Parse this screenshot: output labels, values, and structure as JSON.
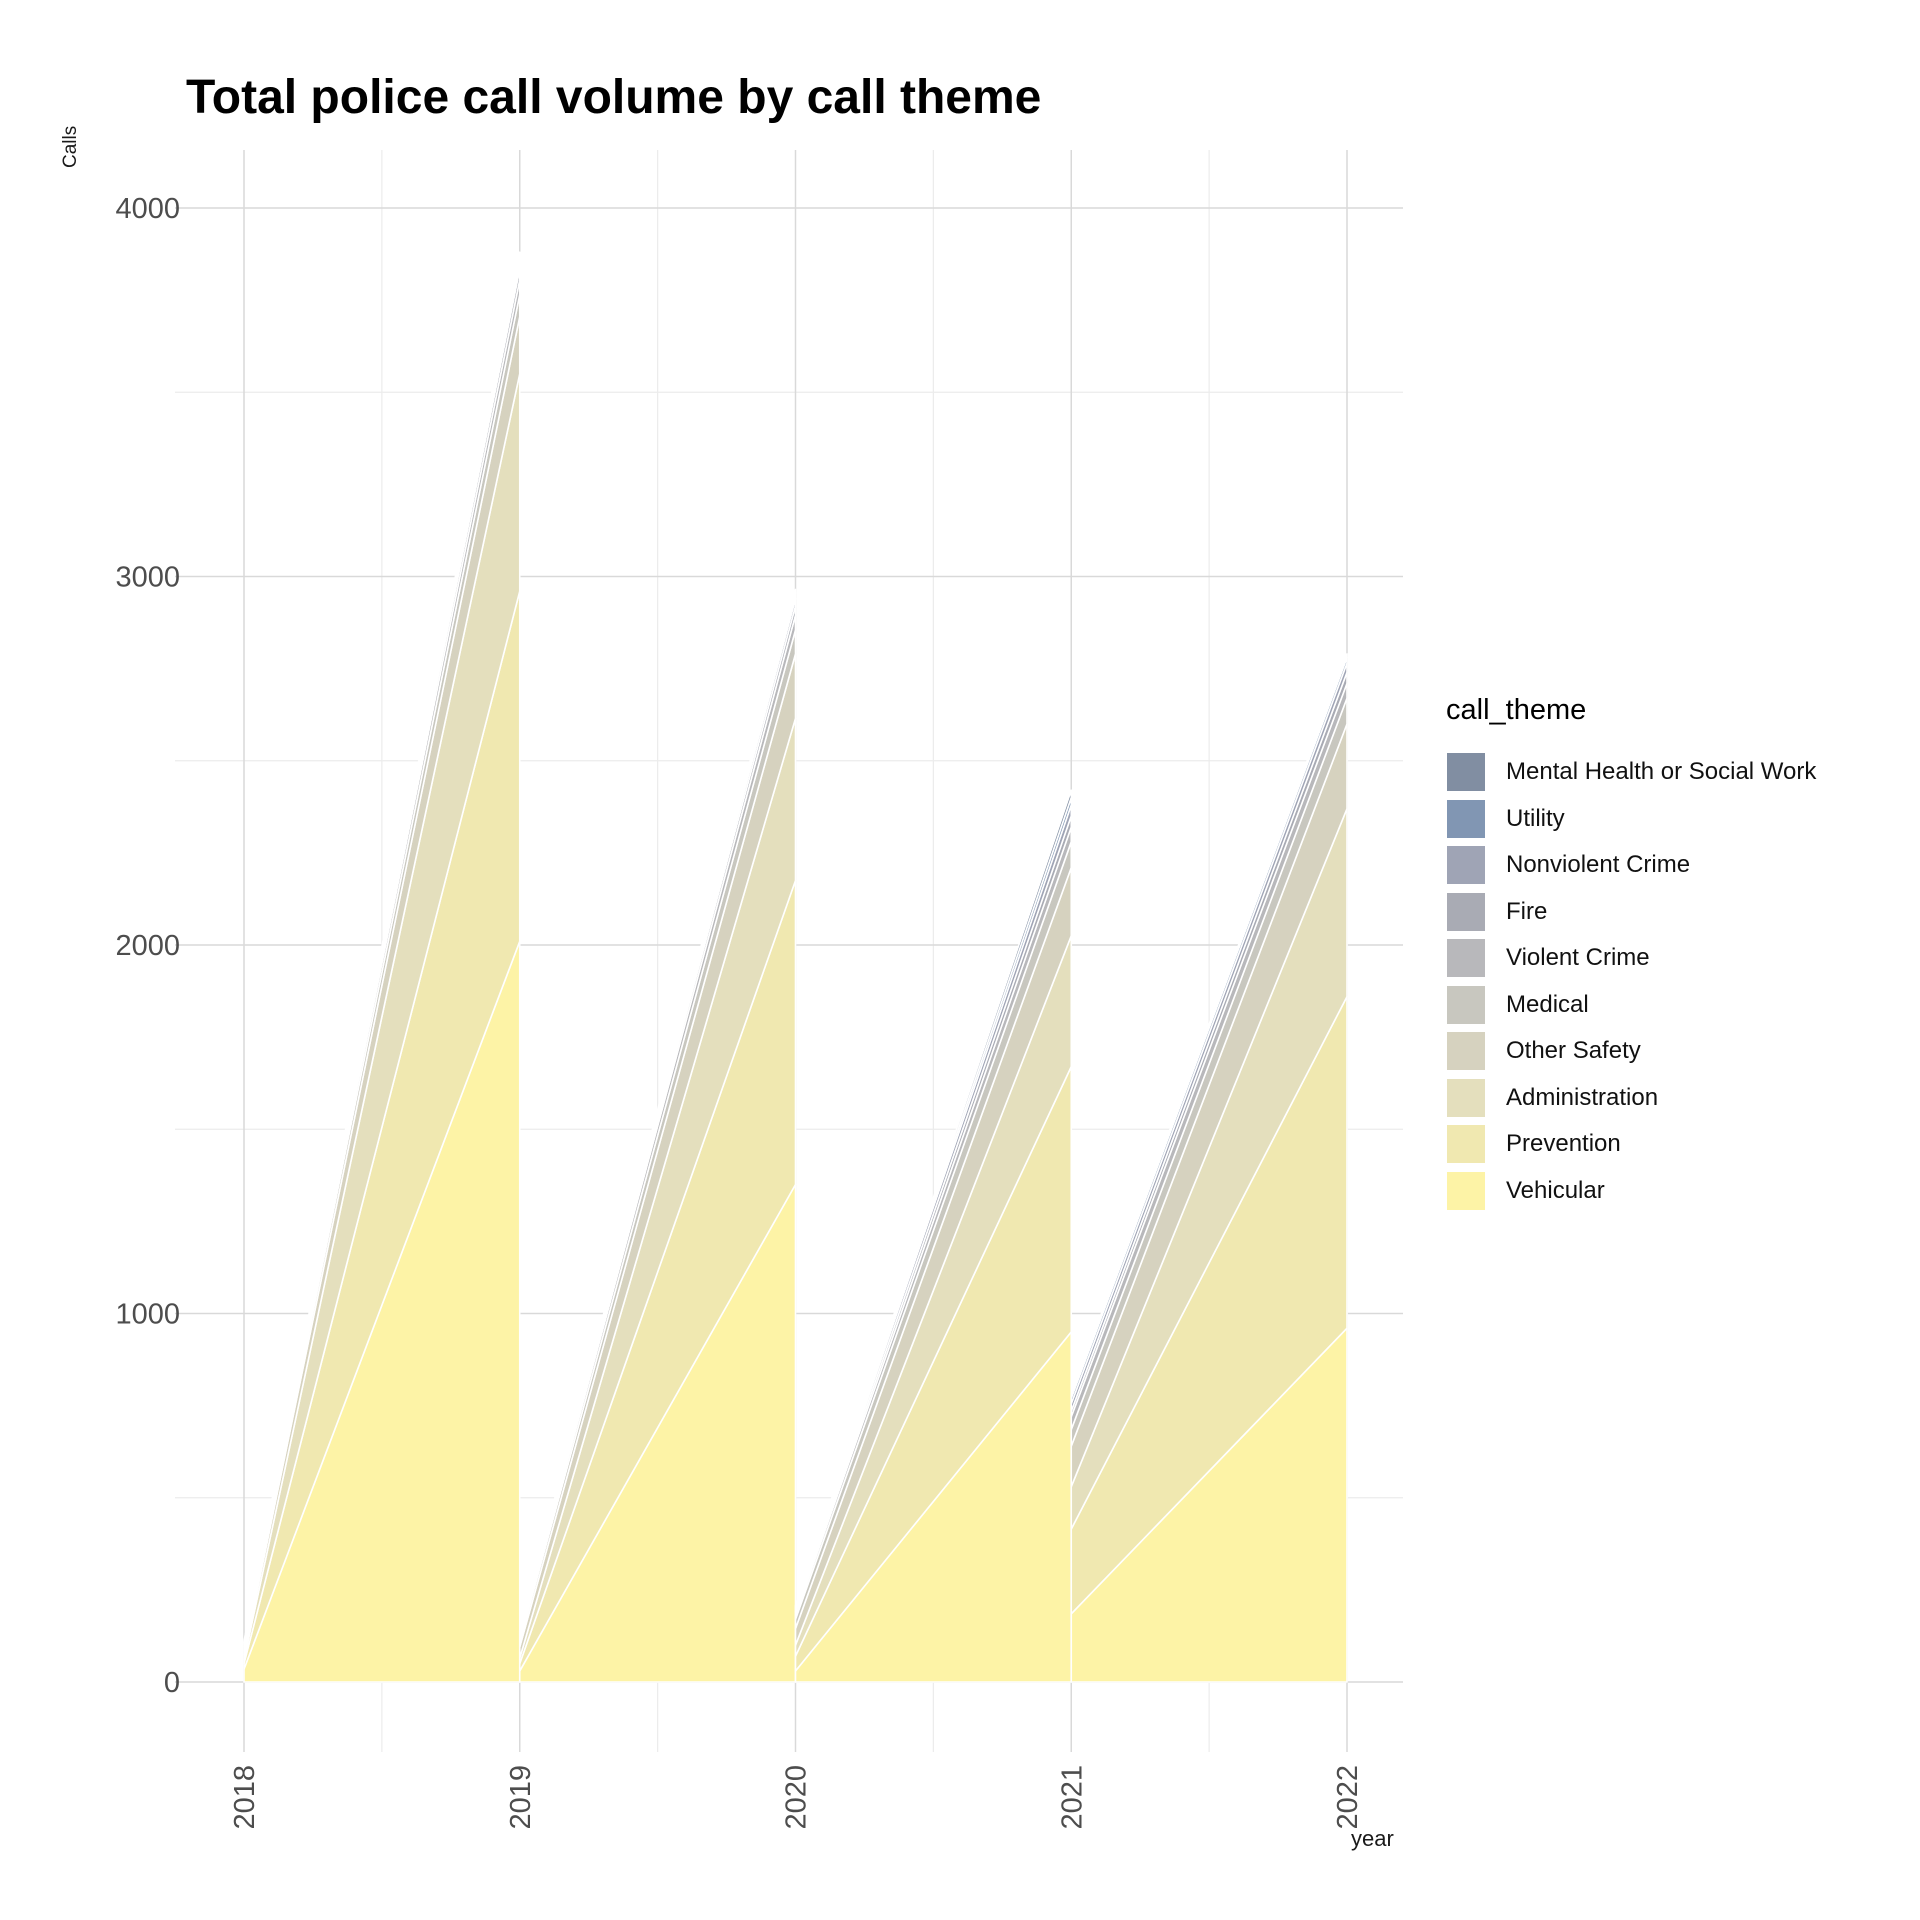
{
  "chart_data": {
    "type": "area",
    "title": "Total police call volume by call theme",
    "xlabel": "year",
    "ylabel": "Calls",
    "x": [
      "2018",
      "2019",
      "2020",
      "2021",
      "2022"
    ],
    "ylim": [
      0,
      4000
    ],
    "yticks": [
      "0",
      "1000",
      "2000",
      "3000",
      "4000"
    ],
    "legend_title": "call_theme",
    "legend_position": "right",
    "grid": true,
    "stacking": "stacked, yearly totals drawn as sawtooth segments",
    "series": [
      {
        "name": "Vehicular",
        "color": "#fdf3a6",
        "start": [
          35,
          30,
          30,
          185
        ],
        "end": [
          2010,
          1350,
          950,
          960
        ]
      },
      {
        "name": "Prevention",
        "color": "#f0e8b0",
        "start": [
          15,
          20,
          40,
          230
        ],
        "end": [
          950,
          825,
          720,
          900
        ]
      },
      {
        "name": "Administration",
        "color": "#e4dfbd",
        "start": [
          10,
          15,
          30,
          115
        ],
        "end": [
          590,
          440,
          355,
          510
        ]
      },
      {
        "name": "Other Safety",
        "color": "#d6d2bf",
        "start": [
          15,
          30,
          45,
          110
        ],
        "end": [
          155,
          175,
          185,
          230
        ]
      },
      {
        "name": "Medical",
        "color": "#c8c7bf",
        "start": [
          10,
          15,
          25,
          45
        ],
        "end": [
          60,
          65,
          70,
          70
        ]
      },
      {
        "name": "Violent Crime",
        "color": "#b8b8bb",
        "start": [
          10,
          12,
          12,
          35
        ],
        "end": [
          40,
          40,
          40,
          40
        ]
      },
      {
        "name": "Fire",
        "color": "#a9abb4",
        "start": [
          5,
          6,
          8,
          15
        ],
        "end": [
          30,
          25,
          30,
          30
        ]
      },
      {
        "name": "Nonviolent Crime",
        "color": "#9fa4b5",
        "start": [
          5,
          6,
          8,
          20
        ],
        "end": [
          20,
          20,
          30,
          25
        ]
      },
      {
        "name": "Utility",
        "color": "#8196b3",
        "start": [
          3,
          3,
          5,
          15
        ],
        "end": [
          15,
          15,
          20,
          15
        ]
      },
      {
        "name": "Mental Health or Social Work",
        "color": "#818ea2",
        "start": [
          3,
          3,
          5,
          10
        ],
        "end": [
          10,
          10,
          20,
          10
        ]
      }
    ]
  }
}
